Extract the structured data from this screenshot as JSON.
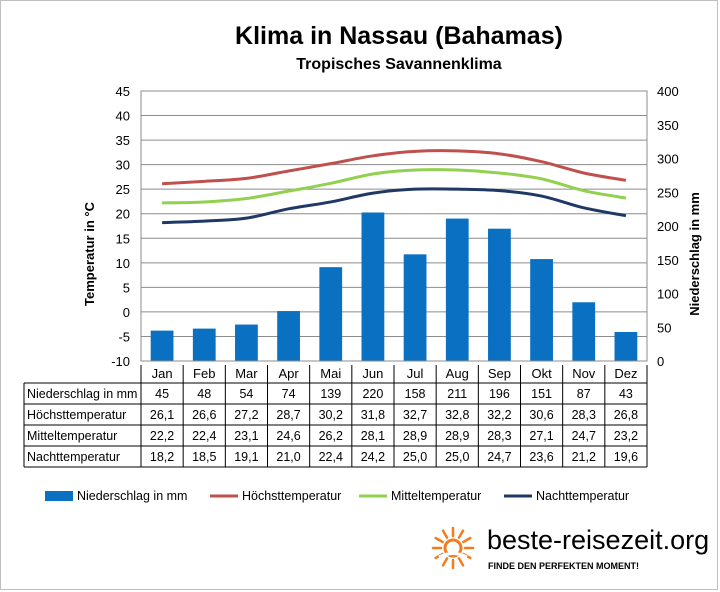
{
  "chart_data": {
    "type": "bar",
    "title": "Klima in Nassau (Bahamas)",
    "subtitle": "Tropisches  Savannenklima",
    "categories": [
      "Jan",
      "Feb",
      "Mar",
      "Apr",
      "Mai",
      "Jun",
      "Jul",
      "Aug",
      "Sep",
      "Okt",
      "Nov",
      "Dez"
    ],
    "ylabel_left": "Temperatur in °C",
    "ylabel_right": "Niederschlag in mm",
    "ylim_left": [
      -10,
      45
    ],
    "yticks_left": [
      -10,
      -5,
      0,
      5,
      10,
      15,
      20,
      25,
      30,
      35,
      40,
      45
    ],
    "ylim_right": [
      0,
      400
    ],
    "yticks_right": [
      0,
      50,
      100,
      150,
      200,
      250,
      300,
      350,
      400
    ],
    "grid": true,
    "legend_position": "bottom",
    "series": [
      {
        "name": "Niederschlag in mm",
        "type": "bar",
        "axis": "right",
        "color": "#0a70c2",
        "values": [
          45,
          48,
          54,
          74,
          139,
          220,
          158,
          211,
          196,
          151,
          87,
          43
        ],
        "labels": [
          "45",
          "48",
          "54",
          "74",
          "139",
          "220",
          "158",
          "211",
          "196",
          "151",
          "87",
          "43"
        ]
      },
      {
        "name": "Höchsttemperatur",
        "type": "line",
        "axis": "left",
        "color": "#c0504d",
        "values": [
          26.1,
          26.6,
          27.2,
          28.7,
          30.2,
          31.8,
          32.7,
          32.8,
          32.2,
          30.6,
          28.3,
          26.8
        ],
        "labels": [
          "26,1",
          "26,6",
          "27,2",
          "28,7",
          "30,2",
          "31,8",
          "32,7",
          "32,8",
          "32,2",
          "30,6",
          "28,3",
          "26,8"
        ]
      },
      {
        "name": "Mitteltemperatur",
        "type": "line",
        "axis": "left",
        "color": "#92d050",
        "values": [
          22.2,
          22.4,
          23.1,
          24.6,
          26.2,
          28.1,
          28.9,
          28.9,
          28.3,
          27.1,
          24.7,
          23.2
        ],
        "labels": [
          "22,2",
          "22,4",
          "23,1",
          "24,6",
          "26,2",
          "28,1",
          "28,9",
          "28,9",
          "28,3",
          "27,1",
          "24,7",
          "23,2"
        ]
      },
      {
        "name": "Nachttemperatur",
        "type": "line",
        "axis": "left",
        "color": "#1f3864",
        "values": [
          18.2,
          18.5,
          19.1,
          21.0,
          22.4,
          24.2,
          25.0,
          25.0,
          24.7,
          23.6,
          21.2,
          19.6
        ],
        "labels": [
          "18,2",
          "18,5",
          "19,1",
          "21,0",
          "22,4",
          "24,2",
          "25,0",
          "25,0",
          "24,7",
          "23,6",
          "21,2",
          "19,6"
        ]
      }
    ]
  },
  "branding": {
    "site": "beste-reisezeit.org",
    "slogan": "FINDE DEN PERFEKTEN MOMENT!",
    "sun_icon": "sun-icon",
    "sun_color": "#f47c20"
  }
}
